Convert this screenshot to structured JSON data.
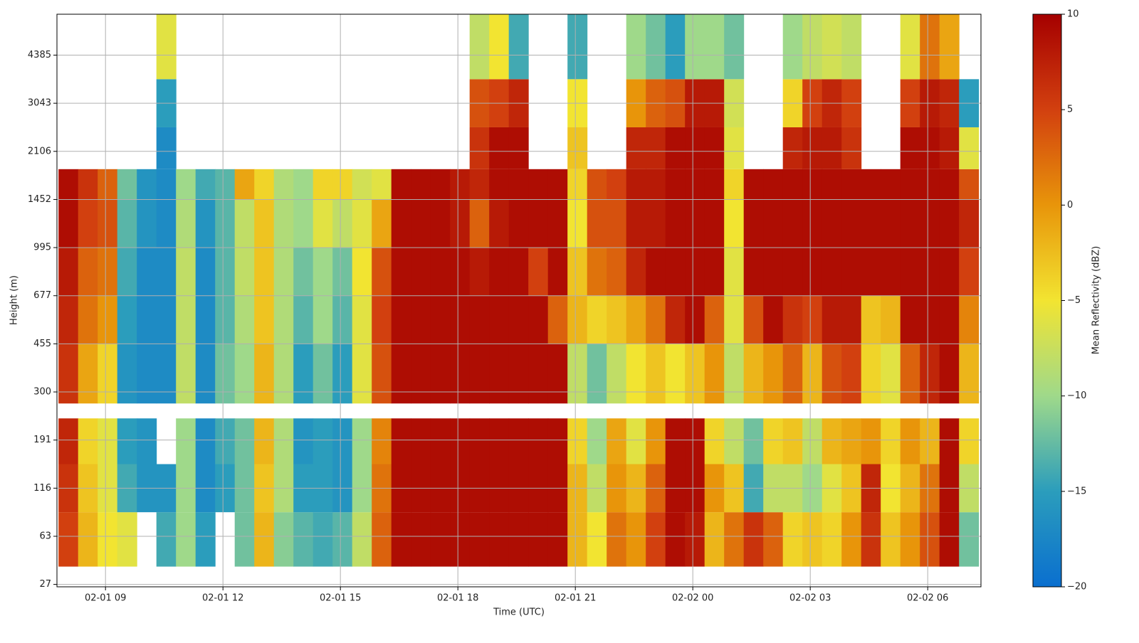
{
  "chart_data": {
    "type": "heatmap",
    "xlabel": "Time (UTC)",
    "ylabel": "Height (m)",
    "colorbar_label": "Mean Reflectivity (dBZ)",
    "xlim": [
      7.76,
      31.36
    ],
    "xticks": [
      {
        "value": 9,
        "label": "02-01 09"
      },
      {
        "value": 12,
        "label": "02-01 12"
      },
      {
        "value": 15,
        "label": "02-01 15"
      },
      {
        "value": 18,
        "label": "02-01 18"
      },
      {
        "value": 21,
        "label": "02-01 21"
      },
      {
        "value": 24,
        "label": "02-02 00"
      },
      {
        "value": 27,
        "label": "02-02 03"
      },
      {
        "value": 30,
        "label": "02-02 06"
      }
    ],
    "ylim": [
      -0.05,
      11.85
    ],
    "yticks": [
      {
        "value": 0,
        "label": "27"
      },
      {
        "value": 1,
        "label": "63"
      },
      {
        "value": 2,
        "label": "116"
      },
      {
        "value": 3,
        "label": "191"
      },
      {
        "value": 4,
        "label": "300"
      },
      {
        "value": 5,
        "label": "455"
      },
      {
        "value": 6,
        "label": "677"
      },
      {
        "value": 7,
        "label": "995"
      },
      {
        "value": 8,
        "label": "1452"
      },
      {
        "value": 9,
        "label": "2106"
      },
      {
        "value": 10,
        "label": "3043"
      },
      {
        "value": 11,
        "label": "4385"
      }
    ],
    "zlim": [
      -20,
      10
    ],
    "zticks": [
      {
        "value": 10,
        "label": "10"
      },
      {
        "value": 5,
        "label": "5"
      },
      {
        "value": 0,
        "label": "0"
      },
      {
        "value": -5,
        "label": "−5"
      },
      {
        "value": -10,
        "label": "−10"
      },
      {
        "value": -15,
        "label": "−15"
      },
      {
        "value": -20,
        "label": "−20"
      }
    ],
    "colors": [
      "#0a6fcf",
      "#2b9dbc",
      "#9fd98a",
      "#f2e431",
      "#e8950a",
      "#d2400f",
      "#a50000"
    ],
    "grid": true,
    "x_edges": [
      7.8,
      8.3,
      8.8,
      9.3,
      9.8,
      10.3,
      10.8,
      11.3,
      11.8,
      12.3,
      12.8,
      13.3,
      13.8,
      14.3,
      14.8,
      15.3,
      15.8,
      16.3,
      16.8,
      17.3,
      17.8,
      18.3,
      18.8,
      19.3,
      19.8,
      20.3,
      20.8,
      21.3,
      21.8,
      22.3,
      22.8,
      23.3,
      23.8,
      24.3,
      24.8,
      25.3,
      25.8,
      26.3,
      26.8,
      27.3,
      27.8,
      28.3,
      28.8,
      29.3,
      29.8,
      30.3,
      30.8,
      31.3
    ],
    "y_edges": [
      0.37,
      1.5,
      2.5,
      3.45,
      3.76,
      5,
      6,
      7,
      8,
      8.63,
      9.5,
      10.5,
      11.85
    ],
    "values": [
      [
        5,
        6,
        7,
        null,
        6,
        7,
        8,
        9,
        9,
        null,
        null,
        null
      ],
      [
        -2,
        -3,
        -4,
        null,
        -1,
        2,
        3,
        5,
        6,
        null,
        null,
        null
      ],
      [
        -5,
        -6,
        -6,
        null,
        -4,
        0,
        2,
        4,
        3,
        null,
        null,
        null
      ],
      [
        -6,
        -14,
        -15,
        null,
        -16,
        -15,
        -14,
        -13,
        -12,
        null,
        null,
        null
      ],
      [
        null,
        -16,
        -16,
        null,
        -17,
        -17,
        -17,
        -16,
        -16,
        null,
        null,
        null
      ],
      [
        -14,
        -16,
        null,
        null,
        -17,
        -17,
        -17,
        -17,
        -17,
        -17,
        -15,
        -6
      ],
      [
        -10,
        -10,
        -10,
        null,
        -8,
        -8,
        -8,
        -9,
        -10,
        null,
        null,
        null
      ],
      [
        -15,
        -17,
        -17,
        null,
        -17,
        -17,
        -17,
        -16,
        -14,
        null,
        null,
        null
      ],
      [
        null,
        -15,
        -14,
        null,
        -12,
        -13,
        -13,
        -13,
        -13,
        null,
        null,
        null
      ],
      [
        -12,
        -12,
        -12,
        null,
        -10,
        -9,
        -8,
        -8,
        -1,
        null,
        null,
        null
      ],
      [
        -2,
        -3,
        -2,
        null,
        -2,
        -3,
        -3,
        -3,
        -4,
        null,
        null,
        null
      ],
      [
        -11,
        -9,
        -9,
        null,
        -9,
        -9,
        -9,
        -9,
        -9,
        null,
        null,
        null
      ],
      [
        -13,
        -15,
        -16,
        null,
        -15,
        -13,
        -12,
        -10,
        -10,
        null,
        null,
        null
      ],
      [
        -14,
        -15,
        -15,
        null,
        -12,
        -10,
        -10,
        -6,
        -4,
        null,
        null,
        null
      ],
      [
        -13,
        -16,
        -16,
        null,
        -15,
        -13,
        -12,
        -8,
        -4,
        null,
        null,
        null
      ],
      [
        -8,
        -10,
        -10,
        null,
        -6,
        -6,
        -5,
        -6,
        -7,
        null,
        null,
        null
      ],
      [
        3,
        2,
        1,
        null,
        4,
        5,
        4,
        -1,
        -6,
        null,
        null,
        null
      ],
      [
        9,
        9,
        9,
        null,
        9,
        9,
        9,
        9,
        9,
        null,
        null,
        null
      ],
      [
        9,
        9,
        9,
        null,
        9,
        9,
        9,
        9,
        9,
        null,
        null,
        null
      ],
      [
        9,
        9,
        9,
        null,
        9,
        9,
        9,
        9,
        9,
        null,
        null,
        null
      ],
      [
        9,
        9,
        9,
        null,
        9,
        9,
        9,
        8,
        8,
        null,
        null,
        null
      ],
      [
        9,
        9,
        9,
        null,
        9,
        9,
        8,
        3,
        7,
        6,
        4,
        -8
      ],
      [
        9,
        9,
        9,
        null,
        9,
        9,
        9,
        8,
        9,
        9,
        5,
        -5
      ],
      [
        9,
        9,
        9,
        null,
        9,
        9,
        9,
        9,
        9,
        9,
        7,
        -14
      ],
      [
        9,
        9,
        9,
        null,
        9,
        9,
        5,
        9,
        9,
        null,
        null,
        null
      ],
      [
        9,
        9,
        9,
        null,
        9,
        3,
        9,
        9,
        9,
        null,
        null,
        null
      ],
      [
        -2,
        -2,
        -4,
        null,
        -8,
        -2,
        -3,
        -5,
        -4,
        -3,
        -5,
        -14
      ],
      [
        -5,
        -8,
        -10,
        null,
        -12,
        -4,
        2,
        4,
        4,
        null,
        null,
        null
      ],
      [
        2,
        0,
        -1,
        null,
        -8,
        -3,
        3,
        4,
        5,
        null,
        null,
        null
      ],
      [
        0,
        -2,
        -6,
        null,
        -5,
        -1,
        7,
        8,
        8,
        7,
        0,
        -10
      ],
      [
        5,
        3,
        0,
        null,
        -3,
        2,
        9,
        8,
        8,
        7,
        3,
        -12
      ],
      [
        9,
        9,
        9,
        null,
        -5,
        7,
        9,
        9,
        9,
        9,
        4,
        -15
      ],
      [
        8,
        9,
        9,
        null,
        -3,
        9,
        9,
        9,
        9,
        9,
        8,
        -10
      ],
      [
        -2,
        0,
        -4,
        null,
        0,
        3,
        9,
        9,
        9,
        9,
        8,
        -10
      ],
      [
        2,
        -3,
        -8,
        null,
        -8,
        -6,
        -6,
        -5,
        -4,
        -6,
        -7,
        -12
      ],
      [
        6,
        -14,
        -12,
        null,
        -2,
        4,
        9,
        9,
        9,
        null,
        null,
        null
      ],
      [
        3,
        -8,
        -4,
        null,
        0,
        9,
        9,
        9,
        9,
        null,
        null,
        null
      ],
      [
        -4,
        -8,
        -3,
        null,
        3,
        6,
        9,
        9,
        9,
        7,
        -4,
        -10
      ],
      [
        -3,
        -10,
        -8,
        null,
        -2,
        5,
        9,
        9,
        9,
        8,
        5,
        -8
      ],
      [
        -4,
        -6,
        -2,
        null,
        4,
        8,
        9,
        9,
        9,
        8,
        7,
        -7
      ],
      [
        0,
        -3,
        -1,
        null,
        5,
        8,
        9,
        9,
        9,
        6,
        5,
        -8
      ],
      [
        6,
        7,
        0,
        null,
        -4,
        -3,
        9,
        9,
        9,
        null,
        null,
        null
      ],
      [
        -3,
        -5,
        -4,
        null,
        -6,
        -2,
        9,
        9,
        9,
        null,
        null,
        null
      ],
      [
        0,
        -2,
        0,
        null,
        3,
        9,
        9,
        9,
        9,
        9,
        5,
        -6
      ],
      [
        4,
        2,
        -2,
        null,
        7,
        9,
        9,
        9,
        9,
        9,
        8,
        2
      ],
      [
        9,
        9,
        9,
        null,
        9,
        9,
        9,
        9,
        9,
        8,
        7,
        -1
      ],
      [
        -12,
        -8,
        -4,
        null,
        -2,
        1,
        5,
        7,
        4,
        -6,
        -15,
        null
      ]
    ]
  }
}
